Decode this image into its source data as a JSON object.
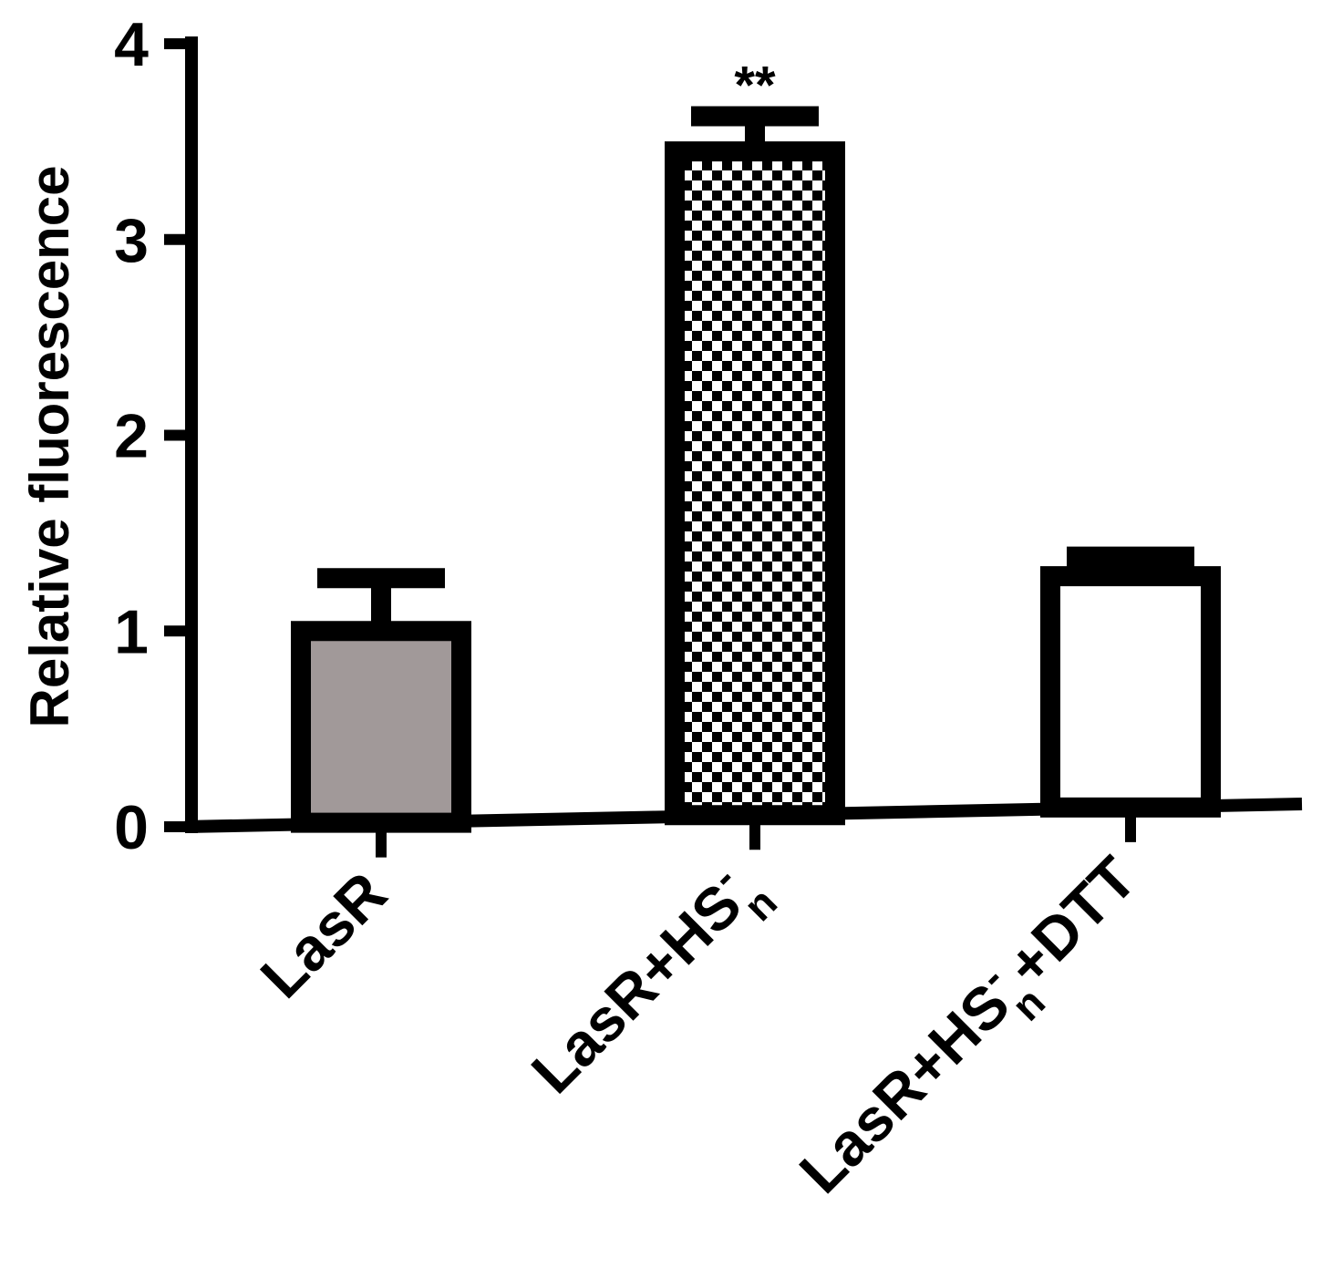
{
  "chart_data": {
    "type": "bar",
    "title": "",
    "xlabel": "",
    "ylabel": "Relative fluorescence",
    "ylim": [
      0,
      4
    ],
    "yticks": [
      "0",
      "1",
      "2",
      "3",
      "4"
    ],
    "grid": false,
    "legend": "none",
    "categories": [
      {
        "base": "LasR",
        "sup": "",
        "sub": "",
        "tail": ""
      },
      {
        "base": "LasR+HS",
        "sup": "-",
        "sub": "n",
        "tail": ""
      },
      {
        "base": "LasR+HS",
        "sup": "-",
        "sub": "n",
        "tail": "+DTT"
      }
    ],
    "values": [
      1.0,
      3.45,
      1.28
    ],
    "errors": [
      0.27,
      0.18,
      0.1
    ],
    "fills": [
      "gray",
      "checkered",
      "white"
    ],
    "bar_colors": {
      "gray": "#a19999",
      "checkered": "#000000",
      "white": "#ffffff"
    },
    "annotations": [
      "",
      "**",
      ""
    ]
  }
}
